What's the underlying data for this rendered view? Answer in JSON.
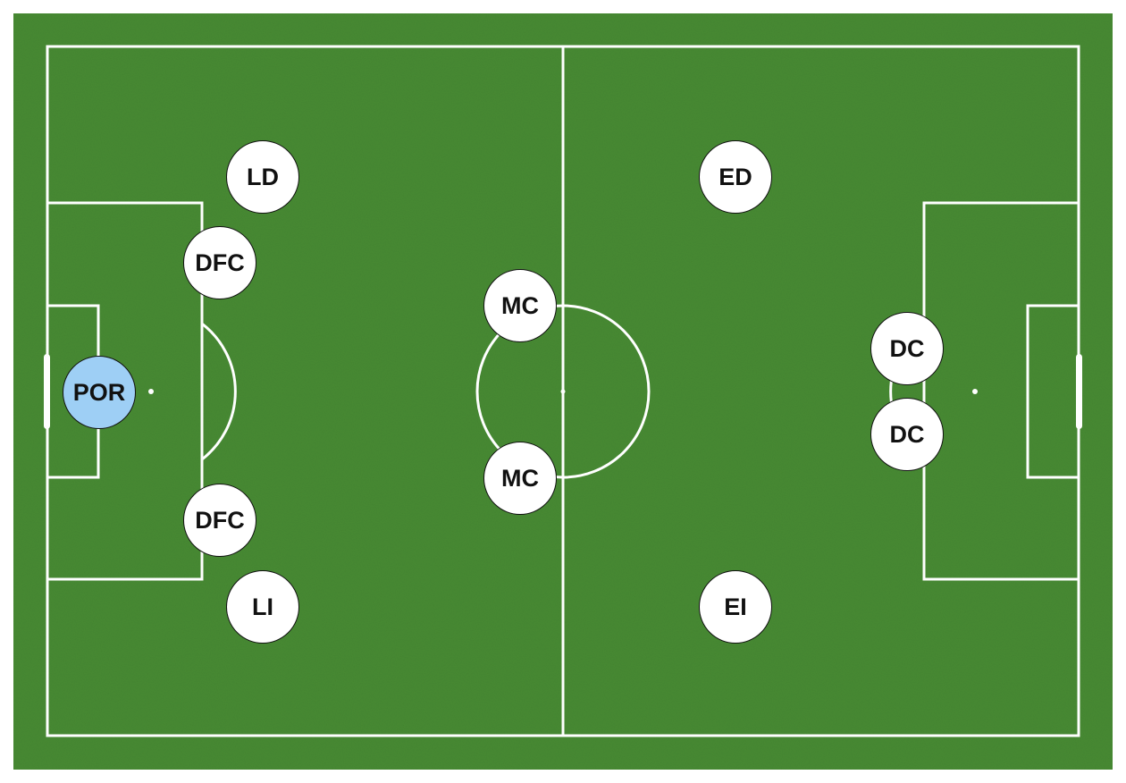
{
  "pitch": {
    "grass_color": "#478a32",
    "line_color": "#ffffff",
    "highlight_color": "#9ecff5"
  },
  "players": [
    {
      "id": "gk",
      "label": "POR",
      "highlight": true
    },
    {
      "id": "rb",
      "label": "LD",
      "highlight": false
    },
    {
      "id": "cb-top",
      "label": "DFC",
      "highlight": false
    },
    {
      "id": "cb-bottom",
      "label": "DFC",
      "highlight": false
    },
    {
      "id": "lb",
      "label": "LI",
      "highlight": false
    },
    {
      "id": "cm-top",
      "label": "MC",
      "highlight": false
    },
    {
      "id": "cm-bottom",
      "label": "MC",
      "highlight": false
    },
    {
      "id": "rw",
      "label": "ED",
      "highlight": false
    },
    {
      "id": "lw",
      "label": "EI",
      "highlight": false
    },
    {
      "id": "st-top",
      "label": "DC",
      "highlight": false
    },
    {
      "id": "st-bottom",
      "label": "DC",
      "highlight": false
    }
  ]
}
